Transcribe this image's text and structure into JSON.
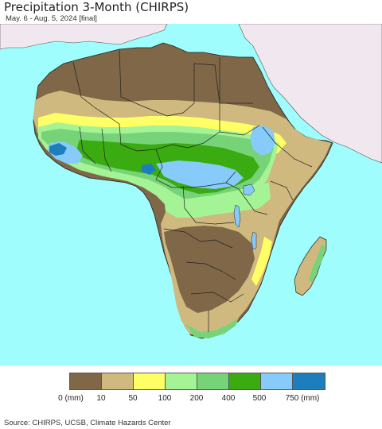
{
  "header": {
    "title": "Precipitation 3-Month (CHIRPS)",
    "subtitle": "May. 6 - Aug. 5, 2024 [final]"
  },
  "legend": {
    "colors": [
      "#7f6747",
      "#cfb97f",
      "#ffff66",
      "#a4f495",
      "#77d377",
      "#3aab11",
      "#86cbf9",
      "#1c7ebd"
    ],
    "labels": [
      "0 (mm)",
      "10",
      "50",
      "100",
      "200",
      "400",
      "500",
      "750 (mm)"
    ]
  },
  "map": {
    "ocean_color": "#9ffdfd",
    "land_outside_color": "#f0e8ee",
    "region": "Africa"
  },
  "footer": {
    "source": "Source: CHIRPS, UCSB, Climate Hazards Center"
  }
}
